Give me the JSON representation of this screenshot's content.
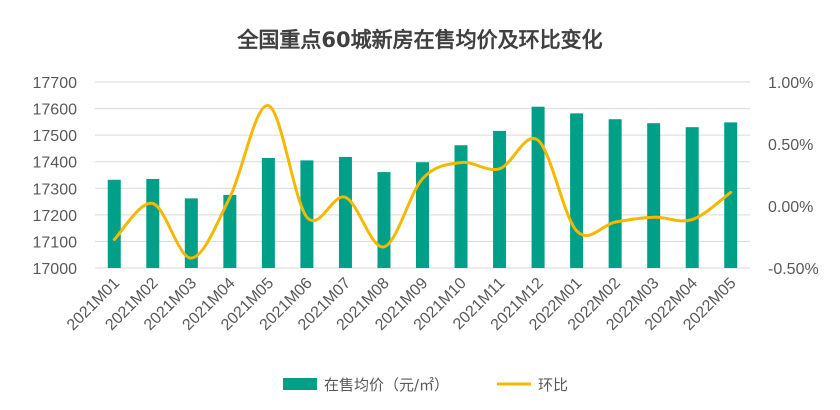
{
  "chart_data": {
    "type": "bar+line",
    "title": "全国重点60城新房在售均价及环比变化",
    "categories": [
      "2021M01",
      "2021M02",
      "2021M03",
      "2021M04",
      "2021M05",
      "2021M06",
      "2021M07",
      "2021M08",
      "2021M09",
      "2021M10",
      "2021M11",
      "2021M12",
      "2022M01",
      "2022M02",
      "2022M03",
      "2022M04",
      "2022M05"
    ],
    "series": [
      {
        "name": "在售均价（元/㎡）",
        "type": "bar",
        "axis": "left",
        "color": "#00A088",
        "values": [
          17332,
          17335,
          17262,
          17275,
          17414,
          17405,
          17418,
          17361,
          17398,
          17462,
          17516,
          17607,
          17582,
          17560,
          17545,
          17530,
          17548
        ]
      },
      {
        "name": "环比",
        "type": "line",
        "axis": "right",
        "color": "#F5B800",
        "values": [
          -0.27,
          0.02,
          -0.42,
          0.07,
          0.81,
          -0.09,
          0.07,
          -0.33,
          0.22,
          0.35,
          0.3,
          0.53,
          -0.2,
          -0.13,
          -0.09,
          -0.11,
          0.11
        ]
      }
    ],
    "y_left": {
      "min": 17000,
      "max": 17700,
      "ticks": [
        "17000",
        "17100",
        "17200",
        "17300",
        "17400",
        "17500",
        "17600",
        "17700"
      ]
    },
    "y_right": {
      "min": -0.5,
      "max": 1.0,
      "ticks": [
        "-0.50%",
        "0.00%",
        "0.50%",
        "1.00%"
      ]
    },
    "legend_position": "bottom",
    "grid": true
  }
}
